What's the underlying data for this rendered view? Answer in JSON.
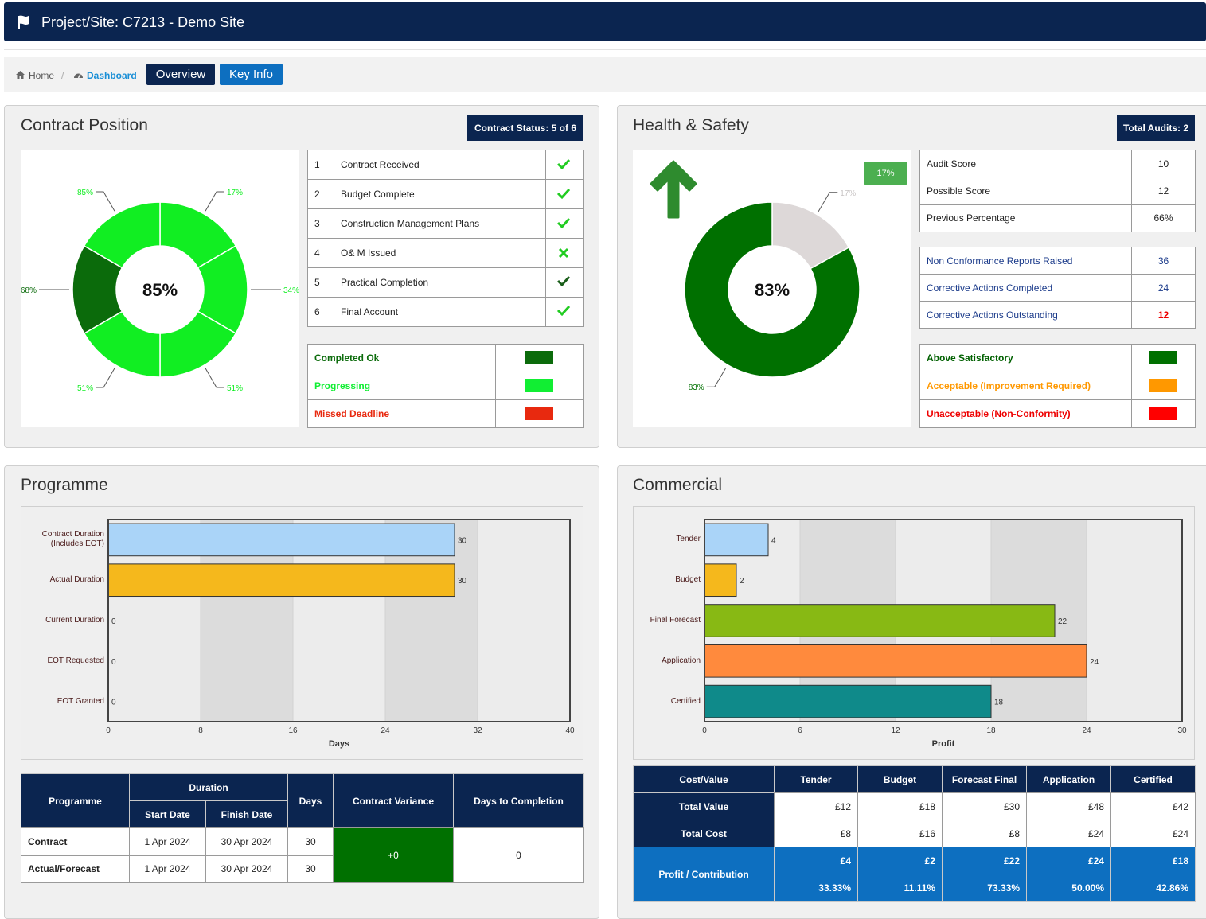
{
  "header": {
    "title": "Project/Site: C7213 - Demo Site"
  },
  "breadcrumb": {
    "home": "Home",
    "current": "Dashboard",
    "buttons": [
      "Overview",
      "Key Info"
    ]
  },
  "contract": {
    "title": "Contract Position",
    "status": "Contract Status: 5 of 6",
    "chart": {
      "type": "segmented_donut",
      "center_label": "85%",
      "values": [
        17,
        34,
        51,
        51,
        68,
        85
      ],
      "value_labels": [
        "17%",
        "34%",
        "51%",
        "51%",
        "68%",
        "85%"
      ],
      "colors": [
        "#11ee22",
        "#11ee22",
        "#11ee22",
        "#11ee22",
        "#0b6b0b",
        "#11ee22"
      ]
    },
    "steps": [
      [
        1,
        "Contract Received"
      ],
      [
        2,
        "Budget Complete"
      ],
      [
        3,
        "Construction Management Plans"
      ],
      [
        4,
        "O& M Issued"
      ],
      [
        5,
        "Practical Completion"
      ],
      [
        6,
        "Final Account"
      ]
    ],
    "legend": [
      {
        "label": "Completed Ok",
        "color": "#0b6b0b"
      },
      {
        "label": "Progressing",
        "color": "#11ee33"
      },
      {
        "label": "Missed Deadline",
        "color": "#e8290f"
      }
    ]
  },
  "health_safety": {
    "title": "Health & Safety",
    "audits": "Total Audits: 2",
    "badge": "17%",
    "chart": {
      "type": "donut",
      "center_label": "83%",
      "values": [
        17,
        83
      ],
      "value_labels": [
        "17%",
        "83%"
      ],
      "colors": [
        "#ddd8d8",
        "#007000"
      ]
    },
    "scores": [
      [
        "Audit Score",
        10
      ],
      [
        "Possible Score",
        12
      ],
      [
        "Previous Percentage",
        "66%"
      ]
    ],
    "reports": [
      [
        "Non Conformance Reports Raised",
        36
      ],
      [
        "Corrective Actions Completed",
        24
      ],
      [
        "Corrective Actions Outstanding",
        12
      ]
    ],
    "legend": [
      {
        "label": "Above Satisfactory",
        "color": "#007000"
      },
      {
        "label": "Acceptable (Improvement Required)",
        "color": "#ff9800"
      },
      {
        "label": "Unacceptable (Non-Conformity)",
        "color": "#ff0000"
      }
    ]
  },
  "programme": {
    "title": "Programme",
    "chart": {
      "type": "hbar",
      "categories": [
        "Contract Duration (Includes EOT)",
        "Actual Duration",
        "Current Duration",
        "EOT Requested",
        "EOT Granted"
      ],
      "values": [
        30,
        30,
        0,
        0,
        0
      ],
      "colors": [
        "#aad4f8",
        "#f5b81c",
        "#aad4f8",
        "#aad4f8",
        "#aad4f8"
      ],
      "xlim": [
        0,
        40
      ],
      "xticks": [
        0,
        8,
        16,
        24,
        32,
        40
      ],
      "x_label": "Days"
    },
    "table": {
      "headers": {
        "programme": "Programme",
        "duration": "Duration",
        "start": "Start Date",
        "finish": "Finish Date",
        "days": "Days",
        "variance": "Contract Variance",
        "completion": "Days to Completion"
      },
      "rows": [
        [
          "Contract",
          "1 Apr 2024",
          "30 Apr 2024",
          30
        ],
        [
          "Actual/Forecast",
          "1 Apr 2024",
          "30 Apr 2024",
          30
        ]
      ],
      "variance": "+0",
      "completion": 0
    }
  },
  "commercial": {
    "title": "Commercial",
    "chart": {
      "type": "hbar",
      "categories": [
        "Tender",
        "Budget",
        "Final Forecast",
        "Application",
        "Certified"
      ],
      "values": [
        4,
        2,
        22,
        24,
        18
      ],
      "colors": [
        "#aad4f8",
        "#f5b81c",
        "#88b914",
        "#ff8a3d",
        "#0f8a8a"
      ],
      "xlim": [
        0,
        30
      ],
      "xticks": [
        0,
        6,
        12,
        18,
        24,
        30
      ],
      "x_label": "Profit"
    },
    "table": {
      "headers": [
        "Cost/Value",
        "Tender",
        "Budget",
        "Forecast Final",
        "Application",
        "Certified"
      ],
      "rows": [
        {
          "label": "Total Value",
          "values": [
            "£12",
            "£18",
            "£30",
            "£48",
            "£42"
          ]
        },
        {
          "label": "Total Cost",
          "values": [
            "£8",
            "£16",
            "£8",
            "£24",
            "£24"
          ]
        }
      ],
      "profit": {
        "label": "Profit / Contribution",
        "values": [
          "£4",
          "£2",
          "£22",
          "£24",
          "£18"
        ],
        "percentages": [
          "33.33%",
          "11.11%",
          "73.33%",
          "50.00%",
          "42.86%"
        ]
      }
    }
  }
}
